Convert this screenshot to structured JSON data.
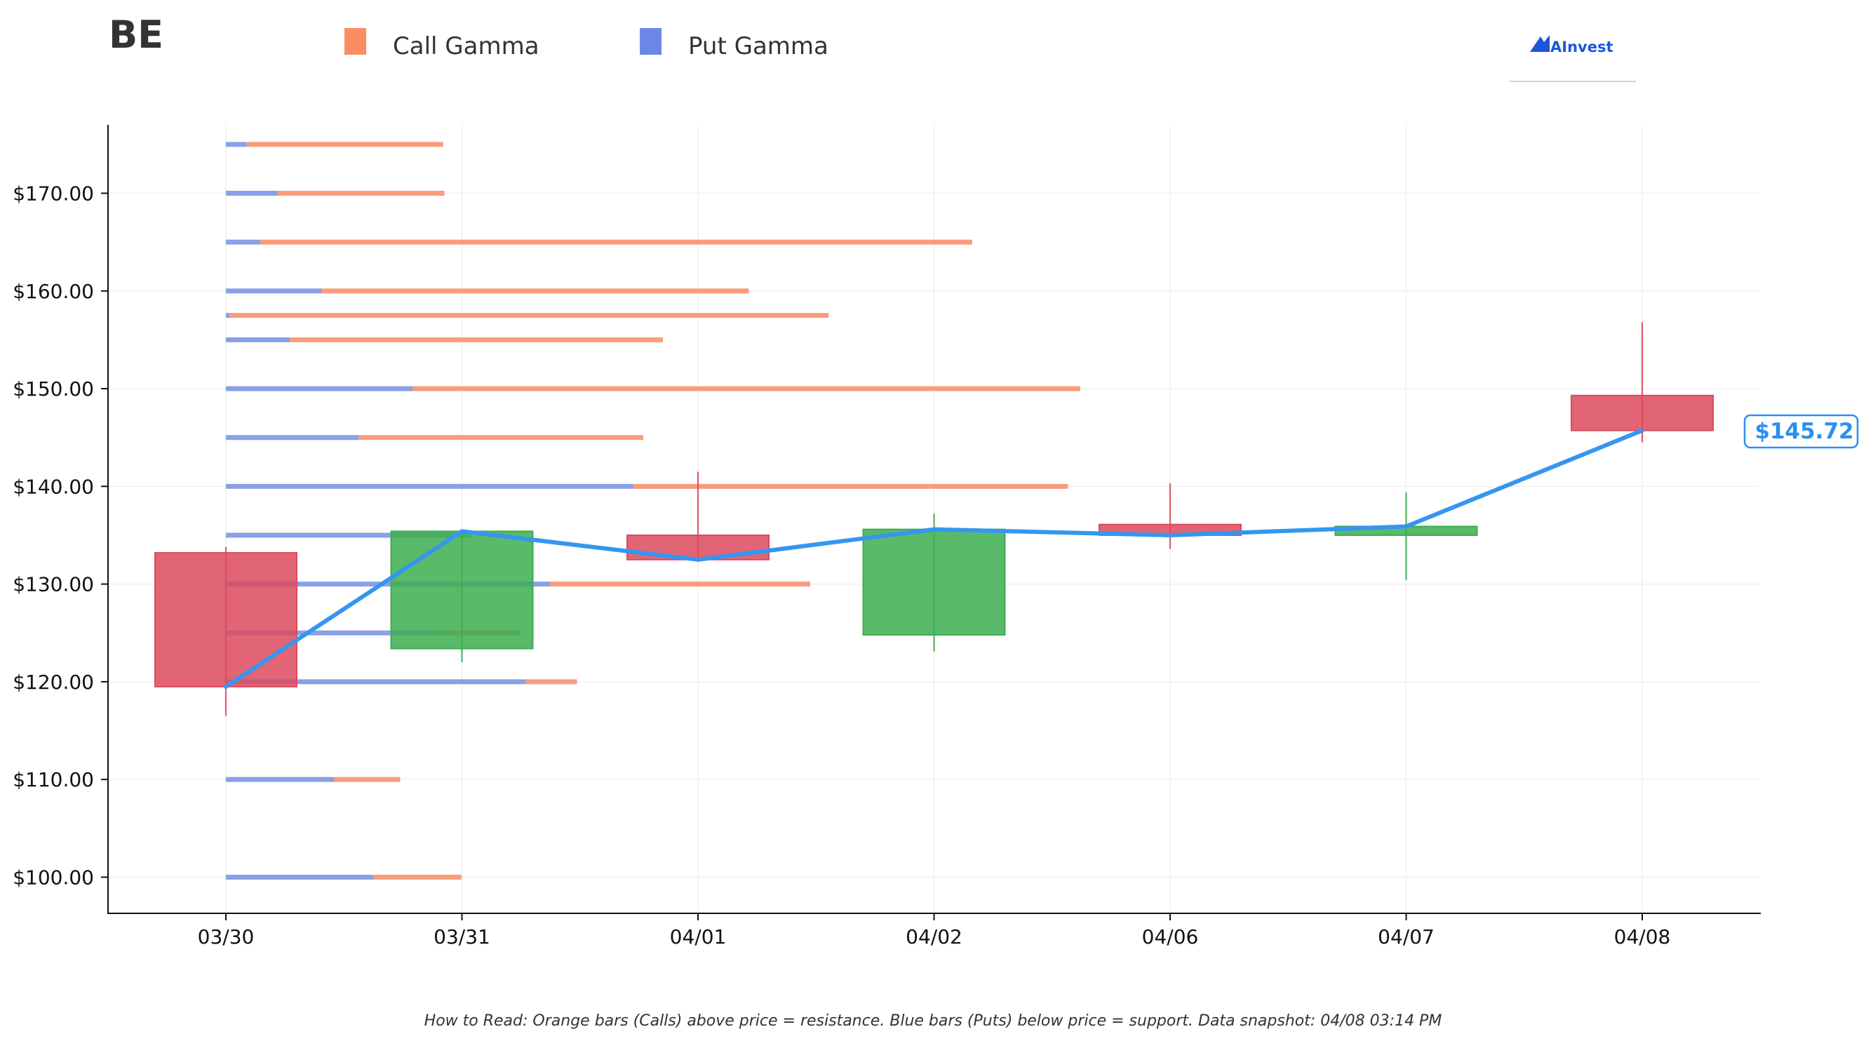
{
  "header": {
    "ticker": "BE",
    "brand": "AInvest"
  },
  "colors": {
    "call": "#f89d7c",
    "put": "#8aa0e6",
    "call_legend": "#fc8d62",
    "put_legend": "#6b87e6",
    "up": "#3cae4f",
    "down": "#dc4a5c",
    "price_line": "#3596f0"
  },
  "chart_data": {
    "type": "candlestick",
    "legend": [
      {
        "name": "Call Gamma",
        "color": "#fc8d62"
      },
      {
        "name": "Put Gamma",
        "color": "#6b87e6"
      }
    ],
    "categories": [
      "03/30",
      "03/31",
      "04/01",
      "04/02",
      "04/06",
      "04/07",
      "04/08"
    ],
    "ohlc": [
      {
        "date": "03/30",
        "open": 133.2,
        "high": 133.8,
        "low": 116.5,
        "close": 119.5
      },
      {
        "date": "03/31",
        "open": 123.4,
        "high": 135.5,
        "low": 122.0,
        "close": 135.4
      },
      {
        "date": "04/01",
        "open": 135.0,
        "high": 141.5,
        "low": 132.3,
        "close": 132.5
      },
      {
        "date": "04/02",
        "open": 124.8,
        "high": 137.2,
        "low": 123.1,
        "close": 135.6
      },
      {
        "date": "04/06",
        "open": 136.1,
        "high": 140.3,
        "low": 133.6,
        "close": 135.0
      },
      {
        "date": "04/07",
        "open": 135.0,
        "high": 139.4,
        "low": 130.4,
        "close": 135.9
      },
      {
        "date": "04/08",
        "open": 149.3,
        "high": 156.8,
        "low": 144.5,
        "close": 145.72
      }
    ],
    "price_line": [
      119.5,
      135.4,
      132.5,
      135.6,
      135.0,
      135.9,
      145.72
    ],
    "current_price_label": "$145.72",
    "gamma_by_strike": [
      {
        "strike": 175,
        "put": 0.085,
        "call": 0.8
      },
      {
        "strike": 170,
        "put": 0.21,
        "call": 0.68
      },
      {
        "strike": 165,
        "put": 0.14,
        "call": 2.9
      },
      {
        "strike": 160,
        "put": 0.39,
        "call": 1.74
      },
      {
        "strike": 157.5,
        "put": 0.015,
        "call": 2.44
      },
      {
        "strike": 155,
        "put": 0.26,
        "call": 1.52
      },
      {
        "strike": 150,
        "put": 0.76,
        "call": 2.72
      },
      {
        "strike": 145,
        "put": 0.54,
        "call": 1.16
      },
      {
        "strike": 140,
        "put": 1.66,
        "call": 1.77
      },
      {
        "strike": 135,
        "put": 1.0,
        "call": 0.0
      },
      {
        "strike": 130,
        "put": 1.32,
        "call": 1.06
      },
      {
        "strike": 125,
        "put": 0.88,
        "call": 0.32
      },
      {
        "strike": 120,
        "put": 1.22,
        "call": 0.21
      },
      {
        "strike": 110,
        "put": 0.44,
        "call": 0.27
      },
      {
        "strike": 100,
        "put": 0.6,
        "call": 0.36
      }
    ],
    "gamma_scale_max": 3.0,
    "yticks": [
      100,
      110,
      120,
      130,
      140,
      150,
      160,
      170
    ],
    "ytick_labels": [
      "$100.00",
      "$110.00",
      "$120.00",
      "$130.00",
      "$140.00",
      "$150.00",
      "$160.00",
      "$170.00"
    ],
    "ylim": [
      96.3,
      177
    ],
    "grid": true,
    "legend_position": "top-left"
  },
  "footer": {
    "note": "How to Read: Orange bars (Calls) above price = resistance. Blue bars (Puts) below price = support. Data snapshot: 04/08 03:14 PM"
  }
}
